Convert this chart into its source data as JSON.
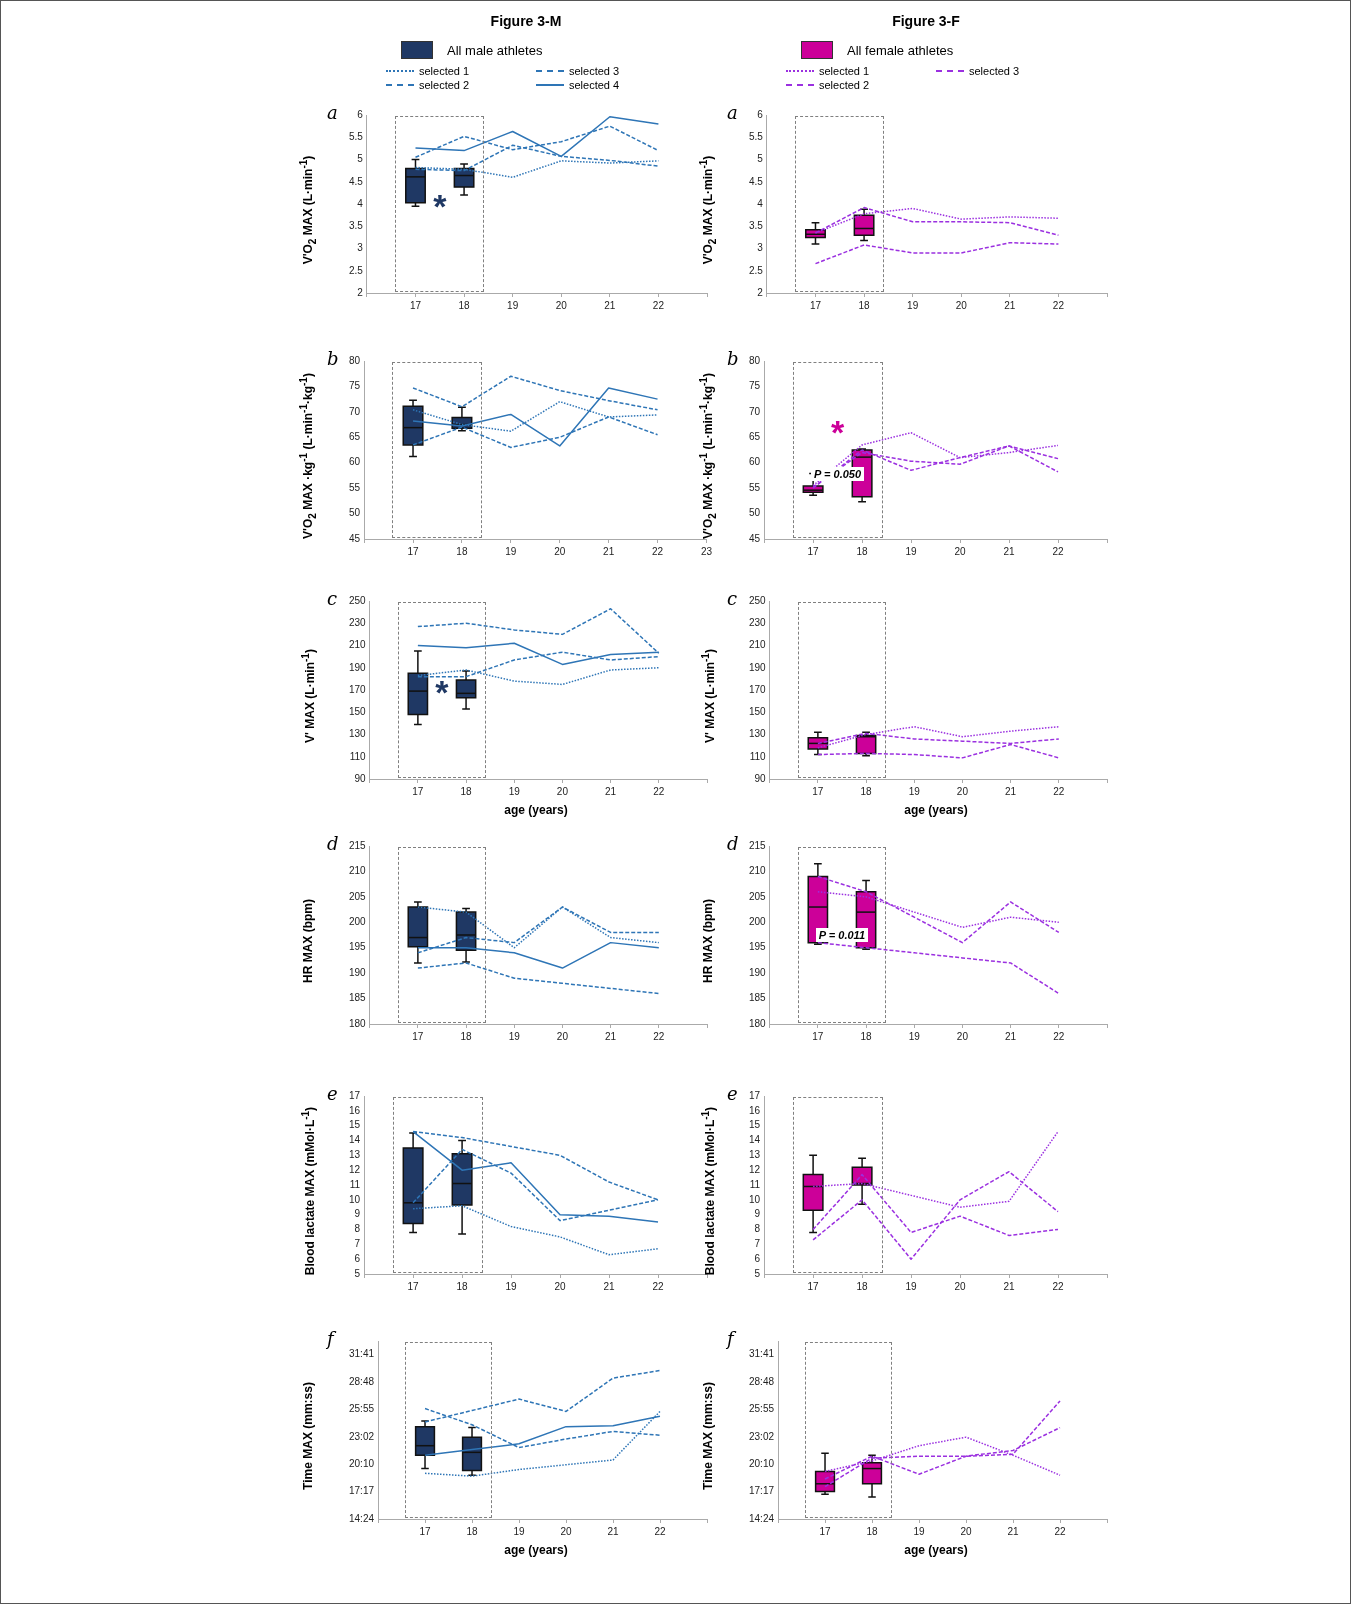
{
  "chart_data": [
    {
      "type": "line",
      "title": "Figure 3-M",
      "legend": "top",
      "ylabel": "V'O$_{2}$ MAX (L·min$^{-1}$)",
      "annotations": [
        "a",
        "*"
      ],
      "categories": [
        null,
        "17",
        "18",
        "19",
        "20",
        "21",
        "22",
        null
      ],
      "ylim": [
        2,
        6
      ],
      "yticks": [
        2,
        2.5,
        3,
        3.5,
        4,
        4.5,
        5,
        5.5,
        6
      ],
      "series": [
        {
          "type": "box",
          "name": "All male athletes",
          "color": "#1f3864",
          "boxes": [
            null,
            {
              "low": 3.95,
              "q1": 4.03,
              "median": 4.61,
              "q3": 4.8,
              "high": 5.0
            },
            {
              "low": 4.2,
              "q1": 4.38,
              "median": 4.64,
              "q3": 4.8,
              "high": 4.9
            },
            null,
            null,
            null,
            null,
            null
          ]
        },
        {
          "type": "line",
          "name": "selected 1",
          "color": "#2e75b6",
          "line_style": "dotted",
          "values": [
            null,
            4.82,
            4.78,
            4.6,
            4.97,
            4.92,
            4.97,
            null
          ]
        },
        {
          "type": "line",
          "name": "selected 2",
          "color": "#2e75b6",
          "line_style": "dashed",
          "values": [
            null,
            4.78,
            4.75,
            5.32,
            5.07,
            4.98,
            4.85,
            null
          ]
        },
        {
          "type": "line",
          "name": "selected 3",
          "color": "#2e75b6",
          "line_style": "dashed",
          "values": [
            null,
            5.05,
            5.52,
            5.22,
            5.4,
            5.75,
            5.2,
            null
          ]
        },
        {
          "type": "line",
          "name": "selected 4",
          "color": "#2e75b6",
          "line_style": "solid",
          "values": [
            null,
            5.26,
            5.2,
            5.63,
            5.07,
            5.96,
            5.8,
            null
          ]
        }
      ]
    },
    {
      "type": "line",
      "title": "Figure 3-F",
      "legend": "top",
      "ylabel": "V'O$_{2}$ MAX (L·min$^{-1}$)",
      "annotations": [
        "a"
      ],
      "categories": [
        null,
        "17",
        "18",
        "19",
        "20",
        "21",
        "22",
        null
      ],
      "ylim": [
        2,
        6
      ],
      "yticks": [
        2,
        2.5,
        3,
        3.5,
        4,
        4.5,
        5,
        5.5,
        6
      ],
      "series": [
        {
          "type": "box",
          "name": "All female athletes",
          "color": "#cc0099",
          "boxes": [
            null,
            {
              "low": 3.1,
              "q1": 3.25,
              "median": 3.32,
              "q3": 3.42,
              "high": 3.58
            },
            {
              "low": 3.18,
              "q1": 3.3,
              "median": 3.45,
              "q3": 3.75,
              "high": 3.88
            },
            null,
            null,
            null,
            null,
            null
          ]
        },
        {
          "type": "line",
          "name": "selected 1",
          "color": "#9b30e0",
          "line_style": "dotted",
          "values": [
            null,
            3.35,
            3.78,
            3.9,
            3.66,
            3.71,
            3.68,
            null
          ]
        },
        {
          "type": "line",
          "name": "selected 2",
          "color": "#9b30e0",
          "line_style": "dashed",
          "values": [
            null,
            2.66,
            3.08,
            2.9,
            2.9,
            3.13,
            3.1,
            null
          ]
        },
        {
          "type": "line",
          "name": "selected 3",
          "color": "#9b30e0",
          "line_style": "dashed",
          "values": [
            null,
            3.35,
            3.92,
            3.6,
            3.6,
            3.58,
            3.3,
            null
          ]
        }
      ]
    },
    {
      "type": "line",
      "ylabel": "V'O$_{2}$ MAX ·kg$^{-1}$ (L·min$^{-1}$·kg$^{-1}$)",
      "annotations": [
        "b"
      ],
      "categories": [
        null,
        "17",
        "18",
        "19",
        "20",
        "21",
        "22",
        "23"
      ],
      "ylim": [
        45,
        80
      ],
      "yticks": [
        45,
        50,
        55,
        60,
        65,
        70,
        75,
        80
      ],
      "series": [
        {
          "type": "box",
          "color": "#1f3864",
          "boxes": [
            null,
            {
              "low": 61.2,
              "q1": 63.5,
              "median": 66.9,
              "q3": 71.1,
              "high": 72.3
            },
            {
              "low": 66.3,
              "q1": 66.8,
              "median": 67.5,
              "q3": 68.9,
              "high": 70.9
            },
            null,
            null,
            null,
            null,
            null
          ]
        },
        {
          "type": "line",
          "color": "#2e75b6",
          "line_style": "dotted",
          "values": [
            null,
            70.4,
            67.5,
            66.2,
            72,
            69,
            69.4,
            null
          ]
        },
        {
          "type": "line",
          "color": "#2e75b6",
          "line_style": "dashed",
          "values": [
            null,
            74.7,
            71,
            77,
            74.2,
            72.2,
            70.4,
            null
          ]
        },
        {
          "type": "line",
          "color": "#2e75b6",
          "line_style": "dashed",
          "values": [
            null,
            63.5,
            67,
            63,
            65,
            69,
            65.5,
            null
          ]
        },
        {
          "type": "line",
          "color": "#2e75b6",
          "line_style": "solid",
          "values": [
            null,
            68.2,
            67.2,
            69.5,
            63.3,
            74.7,
            72.5,
            null
          ]
        }
      ]
    },
    {
      "type": "line",
      "ylabel": "V'O$_{2}$ MAX ·kg$^{-1}$ (L·min$^{-1}$·kg$^{-1}$)",
      "annotations": [
        "b",
        "*",
        "P = 0.050"
      ],
      "categories": [
        null,
        "17",
        "18",
        "19",
        "20",
        "21",
        "22",
        null
      ],
      "ylim": [
        45,
        80
      ],
      "yticks": [
        45,
        50,
        55,
        60,
        65,
        70,
        75,
        80
      ],
      "series": [
        {
          "type": "box",
          "color": "#cc0099",
          "boxes": [
            null,
            {
              "low": 53.6,
              "q1": 54.2,
              "median": 54.6,
              "q3": 55.4,
              "high": 57.9
            },
            {
              "low": 52.3,
              "q1": 53.3,
              "median": 61.1,
              "q3": 62.5,
              "high": 62.7
            },
            null,
            null,
            null,
            null,
            null
          ]
        },
        {
          "type": "line",
          "color": "#9b30e0",
          "line_style": "dotted",
          "values": [
            null,
            55.5,
            63.5,
            65.9,
            61,
            62,
            63.4,
            null
          ]
        },
        {
          "type": "line",
          "color": "#9b30e0",
          "line_style": "dashed",
          "values": [
            null,
            55.2,
            62,
            60.3,
            59.7,
            63.3,
            60.8,
            null
          ]
        },
        {
          "type": "line",
          "color": "#9b30e0",
          "line_style": "dashed",
          "values": [
            null,
            55,
            62.5,
            58.5,
            61,
            63.3,
            58.2,
            null
          ]
        }
      ]
    },
    {
      "type": "line",
      "ylabel": "V' MAX (L·min$^{-1}$)",
      "xlabel": "age (years)",
      "annotations": [
        "c",
        "*"
      ],
      "categories": [
        null,
        "17",
        "18",
        "19",
        "20",
        "21",
        "22",
        null
      ],
      "ylim": [
        90,
        250
      ],
      "yticks": [
        90,
        110,
        130,
        150,
        170,
        190,
        210,
        230,
        250
      ],
      "series": [
        {
          "type": "box",
          "color": "#1f3864",
          "boxes": [
            null,
            {
              "low": 139,
              "q1": 148,
              "median": 169,
              "q3": 185,
              "high": 205
            },
            {
              "low": 153,
              "q1": 163,
              "median": 167,
              "q3": 179,
              "high": 187
            },
            null,
            null,
            null,
            null,
            null
          ]
        },
        {
          "type": "line",
          "color": "#2e75b6",
          "line_style": "dotted",
          "values": [
            null,
            183,
            188,
            178,
            175,
            188,
            190,
            null
          ]
        },
        {
          "type": "line",
          "color": "#2e75b6",
          "line_style": "dashed",
          "values": [
            null,
            182,
            182,
            197,
            204,
            197,
            200,
            null
          ]
        },
        {
          "type": "line",
          "color": "#2e75b6",
          "line_style": "dashed",
          "values": [
            null,
            227,
            230,
            224,
            220,
            243,
            203,
            null
          ]
        },
        {
          "type": "line",
          "color": "#2e75b6",
          "line_style": "solid",
          "values": [
            null,
            210,
            208,
            212,
            193,
            202,
            204,
            null
          ]
        }
      ]
    },
    {
      "type": "line",
      "ylabel": "V' MAX (L·min$^{-1}$)",
      "xlabel": "age (years)",
      "annotations": [
        "c"
      ],
      "categories": [
        null,
        "17",
        "18",
        "19",
        "20",
        "21",
        "22",
        null
      ],
      "ylim": [
        90,
        250
      ],
      "yticks": [
        90,
        110,
        130,
        150,
        170,
        190,
        210,
        230,
        250
      ],
      "series": [
        {
          "type": "box",
          "color": "#cc0099",
          "boxes": [
            null,
            {
              "low": 112,
              "q1": 117,
              "median": 122,
              "q3": 127,
              "high": 132
            },
            {
              "low": 111,
              "q1": 113,
              "median": 128,
              "q3": 129,
              "high": 132
            },
            null,
            null,
            null,
            null,
            null
          ]
        },
        {
          "type": "line",
          "color": "#9b30e0",
          "line_style": "dotted",
          "values": [
            null,
            118,
            130,
            137,
            128,
            133,
            137,
            null
          ]
        },
        {
          "type": "line",
          "color": "#9b30e0",
          "line_style": "dashed",
          "values": [
            null,
            112,
            113,
            112,
            109,
            121,
            109,
            null
          ]
        },
        {
          "type": "line",
          "color": "#9b30e0",
          "line_style": "dashed",
          "values": [
            null,
            122,
            131,
            126,
            124,
            122,
            126,
            null
          ]
        }
      ]
    },
    {
      "type": "line",
      "ylabel": "HR MAX (bpm)",
      "annotations": [
        "d"
      ],
      "categories": [
        null,
        "17",
        "18",
        "19",
        "20",
        "21",
        "22",
        null
      ],
      "ylim": [
        180,
        215
      ],
      "yticks": [
        180,
        185,
        190,
        195,
        200,
        205,
        210,
        215
      ],
      "series": [
        {
          "type": "box",
          "color": "#1f3864",
          "boxes": [
            null,
            {
              "low": 192,
              "q1": 195.2,
              "median": 197,
              "q3": 203,
              "high": 204
            },
            {
              "low": 192.2,
              "q1": 194.5,
              "median": 197.5,
              "q3": 202,
              "high": 202.7
            },
            null,
            null,
            null,
            null,
            null
          ]
        },
        {
          "type": "line",
          "color": "#2e75b6",
          "line_style": "dotted",
          "values": [
            null,
            203,
            202,
            195,
            203,
            197,
            196,
            null
          ]
        },
        {
          "type": "line",
          "color": "#2e75b6",
          "line_style": "dashed",
          "values": [
            null,
            194,
            197,
            196,
            203,
            198,
            198,
            null
          ]
        },
        {
          "type": "line",
          "color": "#2e75b6",
          "line_style": "dashed",
          "values": [
            null,
            191,
            192,
            189,
            188,
            187,
            186,
            null
          ]
        },
        {
          "type": "line",
          "color": "#2e75b6",
          "line_style": "solid",
          "values": [
            null,
            195,
            195,
            194,
            191,
            196,
            195,
            null
          ]
        }
      ]
    },
    {
      "type": "line",
      "ylabel": "HR MAX (bpm)",
      "annotations": [
        "d",
        "P = 0.011"
      ],
      "categories": [
        null,
        "17",
        "18",
        "19",
        "20",
        "21",
        "22",
        null
      ],
      "ylim": [
        180,
        215
      ],
      "yticks": [
        180,
        185,
        190,
        195,
        200,
        205,
        210,
        215
      ],
      "series": [
        {
          "type": "box",
          "color": "#cc0099",
          "boxes": [
            null,
            {
              "low": 195.7,
              "q1": 196,
              "median": 203,
              "q3": 209,
              "high": 211.5
            },
            {
              "low": 194.7,
              "q1": 195,
              "median": 202,
              "q3": 206,
              "high": 208.2
            },
            null,
            null,
            null,
            null,
            null
          ]
        },
        {
          "type": "line",
          "color": "#9b30e0",
          "line_style": "dotted",
          "values": [
            null,
            206,
            205,
            202,
            199,
            201,
            200,
            null
          ]
        },
        {
          "type": "line",
          "color": "#9b30e0",
          "line_style": "dashed",
          "values": [
            null,
            209,
            206,
            201,
            196,
            204,
            198,
            null
          ]
        },
        {
          "type": "line",
          "color": "#9b30e0",
          "line_style": "dashed",
          "values": [
            null,
            196,
            195,
            194,
            193,
            192,
            186,
            null
          ]
        }
      ]
    },
    {
      "type": "line",
      "ylabel": "Blood lactate MAX (mMol·L$^{-1}$)",
      "annotations": [
        "e"
      ],
      "categories": [
        null,
        "17",
        "18",
        "19",
        "20",
        "21",
        "22",
        null
      ],
      "ylim": [
        5,
        17
      ],
      "yticks": [
        5,
        6,
        7,
        8,
        9,
        10,
        11,
        12,
        13,
        14,
        15,
        16,
        17
      ],
      "series": [
        {
          "type": "box",
          "color": "#1f3864",
          "boxes": [
            null,
            {
              "low": 7.8,
              "q1": 8.4,
              "median": 9.8,
              "q3": 13.5,
              "high": 14.5
            },
            {
              "low": 7.7,
              "q1": 9.65,
              "median": 11.1,
              "q3": 13.1,
              "high": 14.0
            },
            null,
            null,
            null,
            null,
            null
          ]
        },
        {
          "type": "line",
          "color": "#2e75b6",
          "line_style": "dotted",
          "values": [
            null,
            9.4,
            9.6,
            8.2,
            7.5,
            6.3,
            6.7,
            null
          ]
        },
        {
          "type": "line",
          "color": "#2e75b6",
          "line_style": "dashed",
          "values": [
            null,
            9.8,
            13.4,
            11.8,
            8.6,
            9.3,
            10.0,
            null
          ]
        },
        {
          "type": "line",
          "color": "#2e75b6",
          "line_style": "dashed",
          "values": [
            null,
            14.6,
            14.2,
            13.6,
            13.0,
            11.2,
            10.0,
            null
          ]
        },
        {
          "type": "line",
          "color": "#2e75b6",
          "line_style": "solid",
          "values": [
            null,
            14.6,
            12.0,
            12.5,
            9.0,
            8.9,
            8.5,
            null
          ]
        }
      ]
    },
    {
      "type": "line",
      "ylabel": "Blood lactate MAX (mMol·L$^{-1}$)",
      "annotations": [
        "e"
      ],
      "categories": [
        null,
        "17",
        "18",
        "19",
        "20",
        "21",
        "22",
        null
      ],
      "ylim": [
        5,
        17
      ],
      "yticks": [
        5,
        6,
        7,
        8,
        9,
        10,
        11,
        12,
        13,
        14,
        15,
        16,
        17
      ],
      "series": [
        {
          "type": "box",
          "color": "#cc0099",
          "boxes": [
            null,
            {
              "low": 7.8,
              "q1": 9.3,
              "median": 10.9,
              "q3": 11.7,
              "high": 13.0
            },
            {
              "low": 9.7,
              "q1": 11.0,
              "median": 11.1,
              "q3": 12.2,
              "high": 12.8
            },
            null,
            null,
            null,
            null,
            null
          ]
        },
        {
          "type": "line",
          "color": "#9b30e0",
          "line_style": "dotted",
          "values": [
            null,
            10.9,
            11.1,
            10.3,
            9.5,
            9.9,
            14.6,
            null
          ]
        },
        {
          "type": "line",
          "color": "#9b30e0",
          "line_style": "dashed",
          "values": [
            null,
            8.0,
            11.7,
            7.8,
            8.9,
            7.6,
            8.0,
            null
          ]
        },
        {
          "type": "line",
          "color": "#9b30e0",
          "line_style": "dashed",
          "values": [
            null,
            7.3,
            10.0,
            6.0,
            10.0,
            11.9,
            9.2,
            null
          ]
        }
      ]
    },
    {
      "type": "line",
      "ylabel": "Time MAX (mm:ss)",
      "xlabel": "age (years)",
      "annotations": [
        "f"
      ],
      "categories": [
        null,
        "17",
        "18",
        "19",
        "20",
        "21",
        "22",
        null
      ],
      "ylim": [
        14.4,
        33.1
      ],
      "yticks": [
        {
          "value": 14.4,
          "label": "14:24"
        },
        {
          "value": 17.28,
          "label": "17:17"
        },
        {
          "value": 20.16,
          "label": "20:10"
        },
        {
          "value": 23.04,
          "label": "23:02"
        },
        {
          "value": 25.92,
          "label": "25:55"
        },
        {
          "value": 28.8,
          "label": "28:48"
        },
        {
          "value": 31.68,
          "label": "31:41"
        }
      ],
      "series": [
        {
          "type": "box",
          "color": "#1f3864",
          "boxes": [
            null,
            {
              "low": 19.7,
              "q1": 21.1,
              "median": 22.1,
              "q3": 24.1,
              "high": 24.7
            },
            {
              "low": 19.0,
              "q1": 19.5,
              "median": 21.4,
              "q3": 23.0,
              "high": 24.0
            },
            null,
            null,
            null,
            null,
            null
          ]
        },
        {
          "type": "line",
          "color": "#2e75b6",
          "line_style": "dotted",
          "values": [
            null,
            19.2,
            18.9,
            19.6,
            20.1,
            20.6,
            25.7,
            null
          ]
        },
        {
          "type": "line",
          "color": "#2e75b6",
          "line_style": "dashed",
          "values": [
            null,
            24.6,
            25.8,
            27.0,
            25.7,
            29.2,
            30.0,
            null
          ]
        },
        {
          "type": "line",
          "color": "#2e75b6",
          "line_style": "dashed",
          "values": [
            null,
            26.0,
            24.3,
            21.9,
            22.8,
            23.6,
            23.2,
            null
          ]
        },
        {
          "type": "line",
          "color": "#2e75b6",
          "line_style": "solid",
          "values": [
            null,
            21.1,
            21.7,
            22.3,
            24.1,
            24.2,
            25.2,
            null
          ]
        }
      ]
    },
    {
      "type": "line",
      "ylabel": "Time MAX (mm:ss)",
      "xlabel": "age (years)",
      "annotations": [
        "f"
      ],
      "categories": [
        null,
        "17",
        "18",
        "19",
        "20",
        "21",
        "22",
        null
      ],
      "ylim": [
        14.4,
        33.1
      ],
      "yticks": [
        {
          "value": 14.4,
          "label": "14:24"
        },
        {
          "value": 17.28,
          "label": "17:17"
        },
        {
          "value": 20.16,
          "label": "20:10"
        },
        {
          "value": 23.04,
          "label": "23:02"
        },
        {
          "value": 25.92,
          "label": "25:55"
        },
        {
          "value": 28.8,
          "label": "28:48"
        },
        {
          "value": 31.68,
          "label": "31:41"
        }
      ],
      "series": [
        {
          "type": "box",
          "color": "#cc0099",
          "boxes": [
            null,
            {
              "low": 17.0,
              "q1": 17.3,
              "median": 18.1,
              "q3": 19.4,
              "high": 21.3
            },
            {
              "low": 16.7,
              "q1": 18.1,
              "median": 19.7,
              "q3": 20.3,
              "high": 21.1
            },
            null,
            null,
            null,
            null,
            null
          ]
        },
        {
          "type": "line",
          "color": "#9b30e0",
          "line_style": "dotted",
          "values": [
            null,
            19.4,
            20.5,
            22.1,
            23.0,
            21.1,
            19.0,
            null
          ]
        },
        {
          "type": "line",
          "color": "#9b30e0",
          "line_style": "dashed",
          "values": [
            null,
            17.8,
            20.8,
            21.0,
            21.0,
            21.2,
            26.8,
            null
          ]
        },
        {
          "type": "line",
          "color": "#9b30e0",
          "line_style": "dashed",
          "values": [
            null,
            18.6,
            21.0,
            19.1,
            21.0,
            21.6,
            24.0,
            null
          ]
        }
      ]
    }
  ]
}
